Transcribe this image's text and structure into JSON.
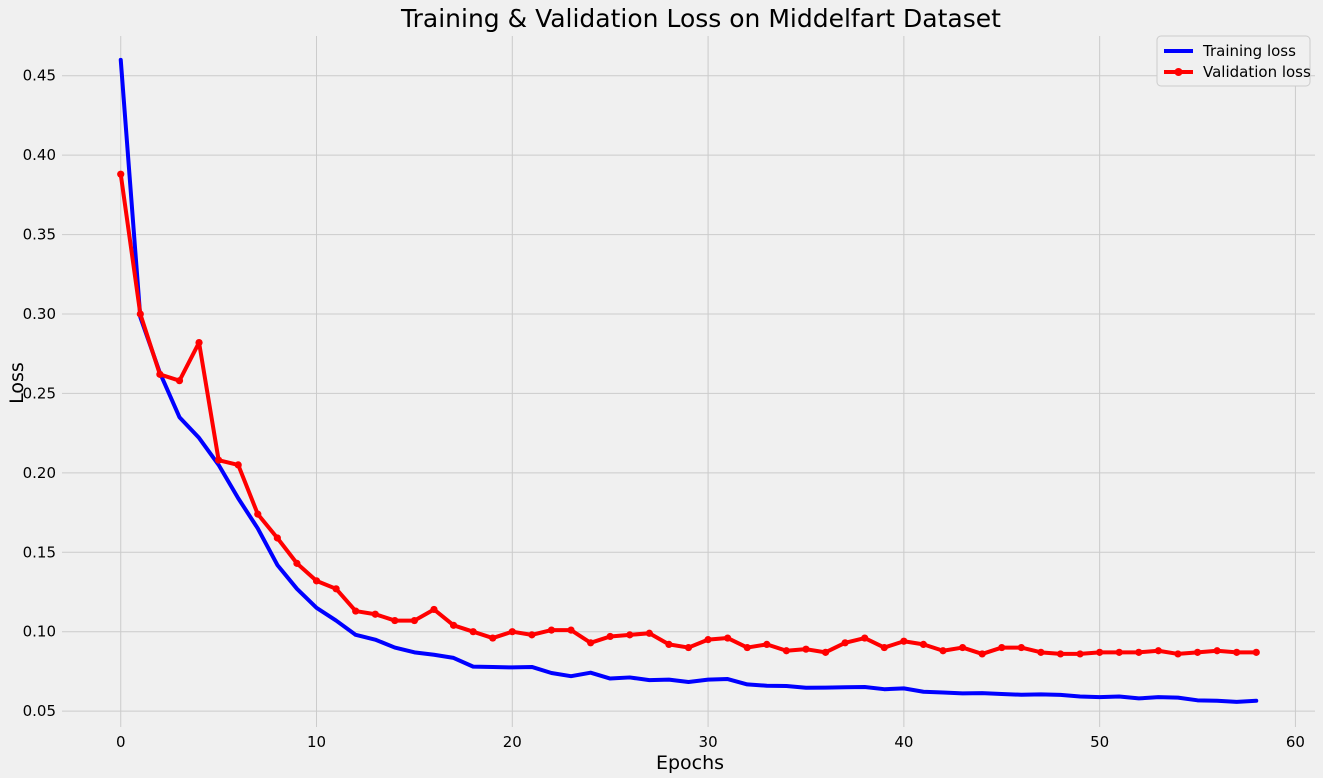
{
  "chart_data": {
    "type": "line",
    "title": "Training & Validation Loss on Middelfart Dataset",
    "xlabel": "Epochs",
    "ylabel": "Loss",
    "xlim": [
      -3,
      61
    ],
    "ylim": [
      0.04,
      0.475
    ],
    "xticks": [
      0,
      10,
      20,
      30,
      40,
      50,
      60
    ],
    "yticks": [
      0.05,
      0.1,
      0.15,
      0.2,
      0.25,
      0.3,
      0.35,
      0.4,
      0.45
    ],
    "xtick_labels": [
      "0",
      "10",
      "20",
      "30",
      "40",
      "50",
      "60"
    ],
    "ytick_labels": [
      "0.05",
      "0.10",
      "0.15",
      "0.20",
      "0.25",
      "0.30",
      "0.35",
      "0.40",
      "0.45"
    ],
    "grid": true,
    "legend_position": "top-right",
    "x": [
      0,
      1,
      2,
      3,
      4,
      5,
      6,
      7,
      8,
      9,
      10,
      11,
      12,
      13,
      14,
      15,
      16,
      17,
      18,
      19,
      20,
      21,
      22,
      23,
      24,
      25,
      26,
      27,
      28,
      29,
      30,
      31,
      32,
      33,
      34,
      35,
      36,
      37,
      38,
      39,
      40,
      41,
      42,
      43,
      44,
      45,
      46,
      47,
      48,
      49,
      50,
      51,
      52,
      53,
      54,
      55,
      56,
      57,
      58
    ],
    "series": [
      {
        "name": "Training loss",
        "color": "#0000ff",
        "marker": false,
        "values": [
          0.46,
          0.298,
          0.263,
          0.235,
          0.222,
          0.205,
          0.184,
          0.165,
          0.142,
          0.127,
          0.115,
          0.107,
          0.098,
          0.095,
          0.09,
          0.087,
          0.0855,
          0.0835,
          0.078,
          0.0778,
          0.0775,
          0.0778,
          0.074,
          0.072,
          0.0742,
          0.0705,
          0.0712,
          0.0695,
          0.0698,
          0.0683,
          0.0698,
          0.0702,
          0.0668,
          0.066,
          0.0658,
          0.0647,
          0.0648,
          0.065,
          0.0652,
          0.0638,
          0.0643,
          0.0622,
          0.0617,
          0.0612,
          0.0613,
          0.0608,
          0.0603,
          0.0605,
          0.0602,
          0.0592,
          0.0588,
          0.0592,
          0.058,
          0.0588,
          0.0585,
          0.0568,
          0.0565,
          0.0558,
          0.0565
        ]
      },
      {
        "name": "Validation loss",
        "color": "#ff0000",
        "marker": true,
        "values": [
          0.388,
          0.3,
          0.262,
          0.258,
          0.282,
          0.208,
          0.205,
          0.174,
          0.159,
          0.143,
          0.132,
          0.127,
          0.113,
          0.111,
          0.107,
          0.107,
          0.114,
          0.104,
          0.1,
          0.096,
          0.1,
          0.098,
          0.101,
          0.101,
          0.093,
          0.097,
          0.098,
          0.099,
          0.092,
          0.09,
          0.095,
          0.096,
          0.09,
          0.092,
          0.088,
          0.089,
          0.087,
          0.093,
          0.096,
          0.09,
          0.094,
          0.092,
          0.088,
          0.09,
          0.086,
          0.09,
          0.09,
          0.087,
          0.086,
          0.086,
          0.087,
          0.087,
          0.087,
          0.088,
          0.086,
          0.087,
          0.088,
          0.087,
          0.087
        ]
      }
    ]
  }
}
